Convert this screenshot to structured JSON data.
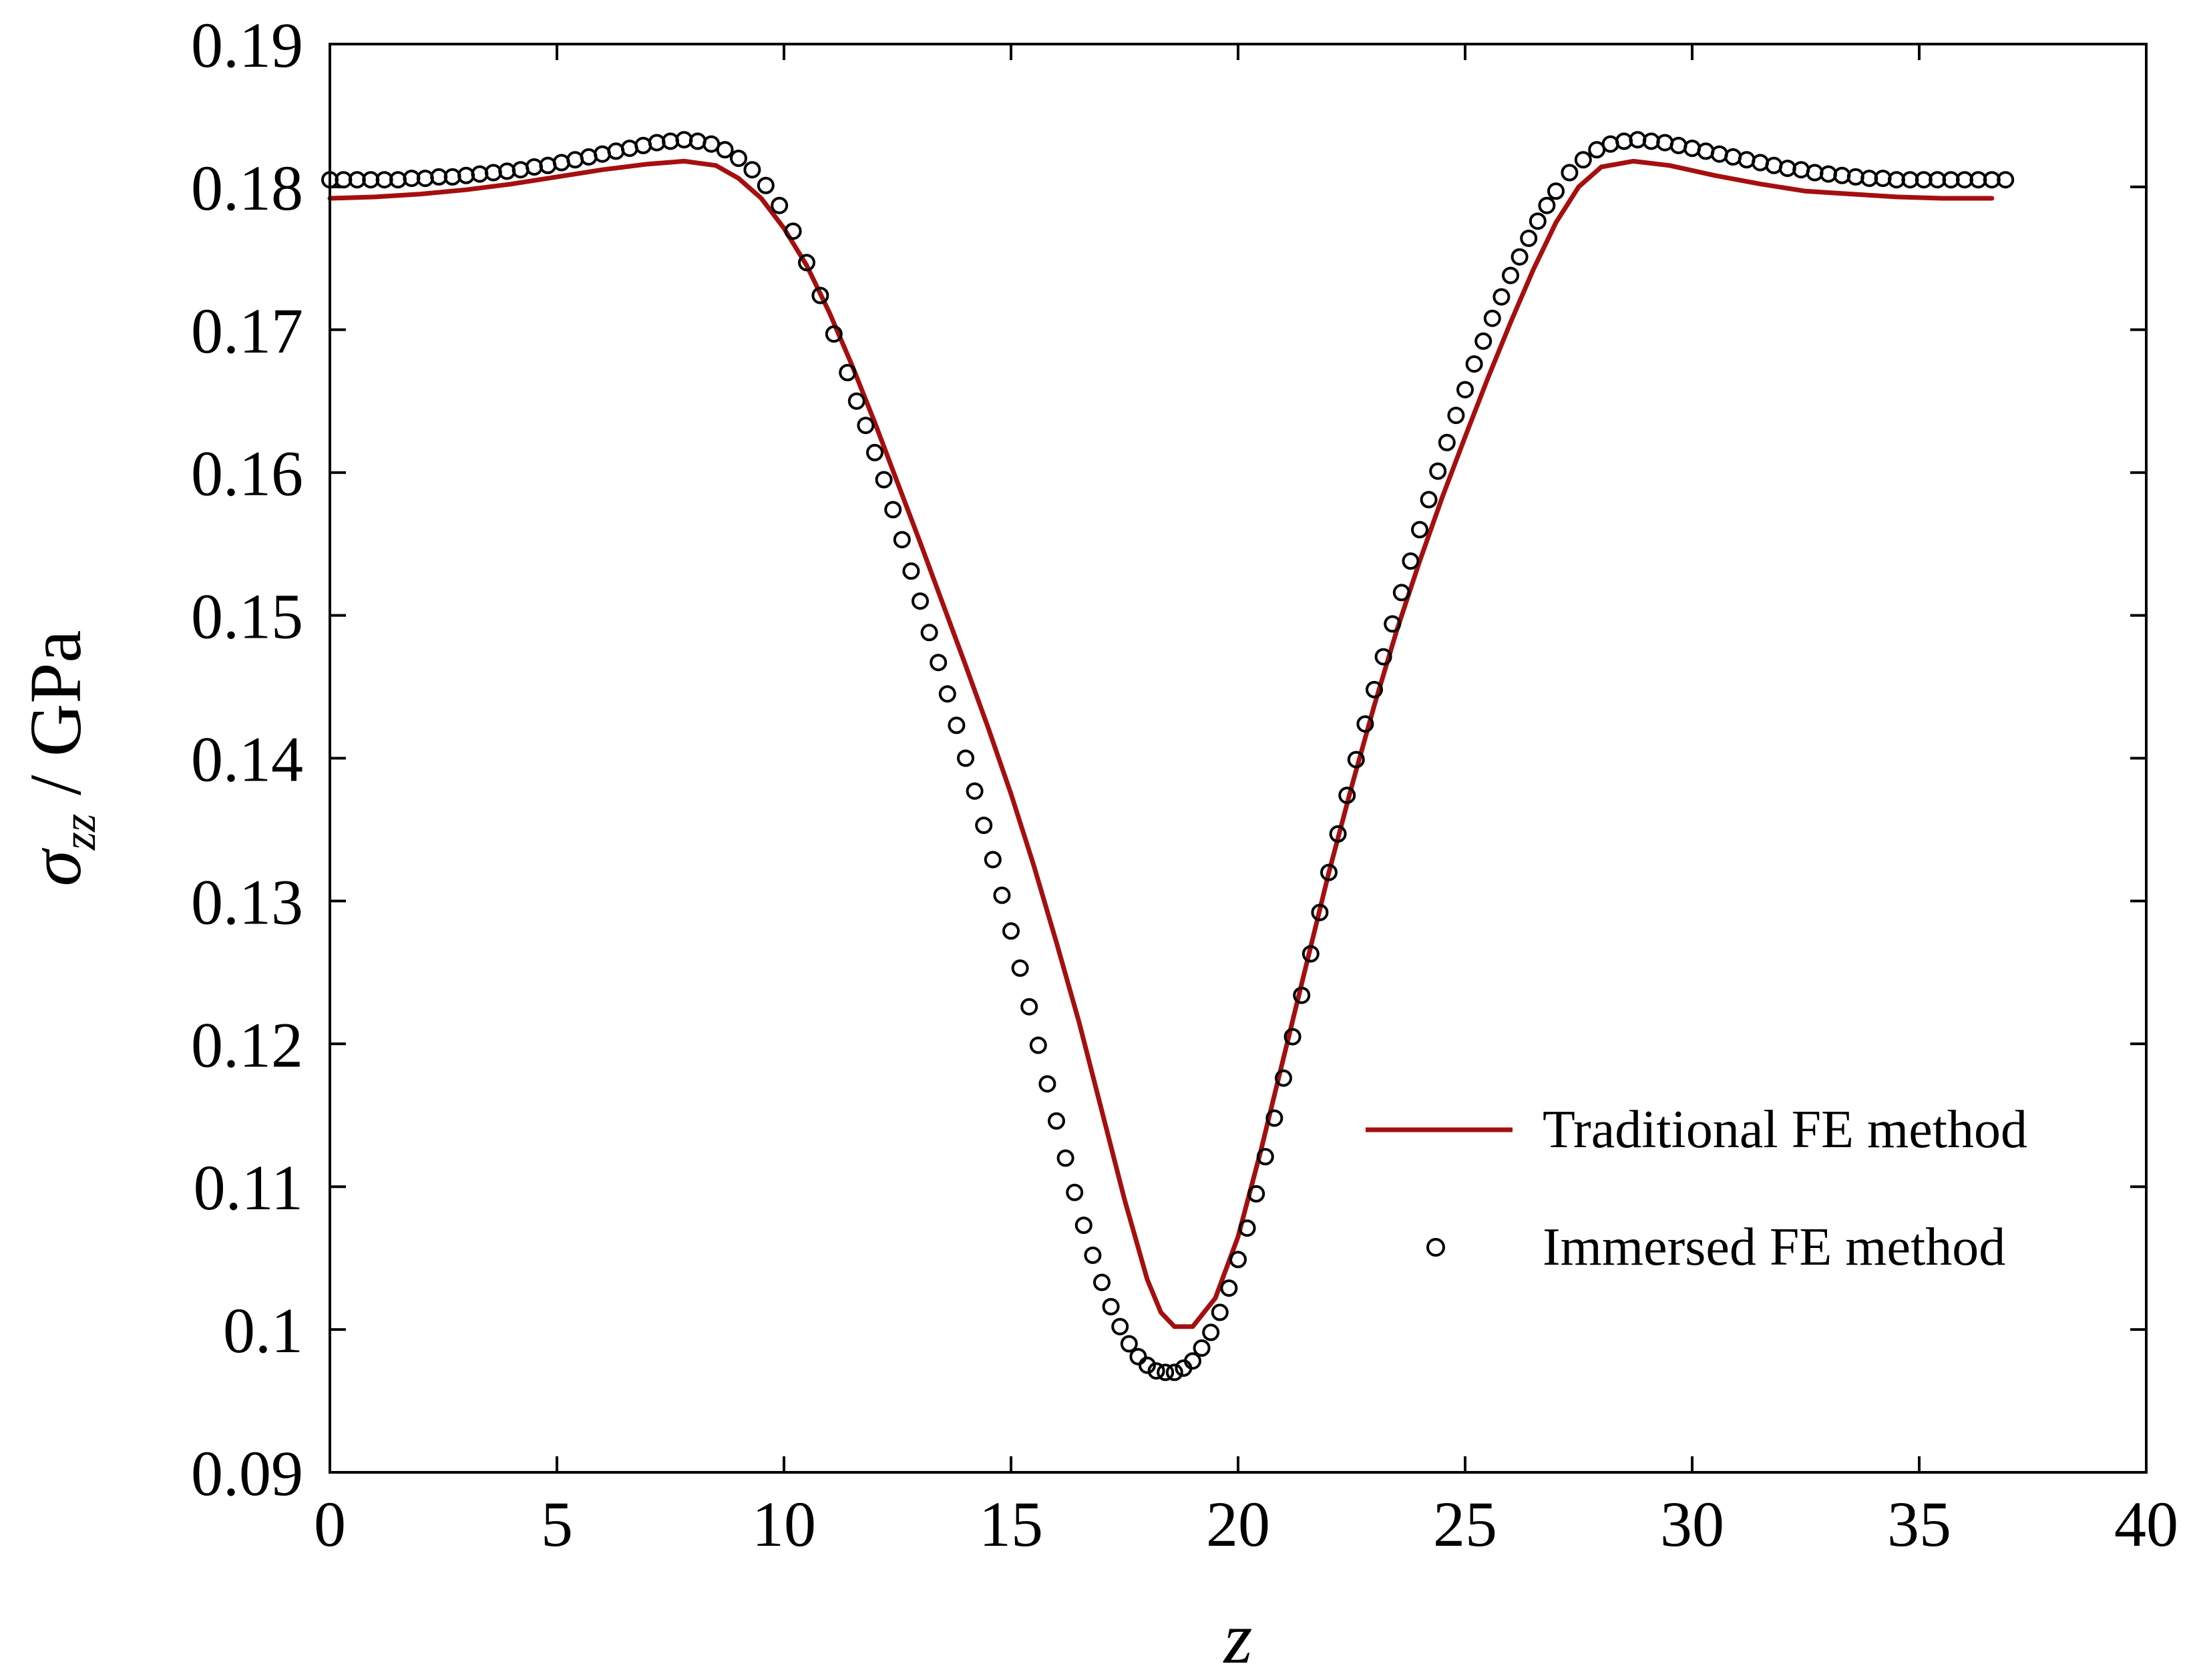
{
  "chart_data": {
    "type": "line",
    "title": "",
    "xlabel": "z",
    "ylabel": {
      "sym": "σ",
      "sub": "zz",
      "rest": " / GPa"
    },
    "xlim": [
      0,
      40
    ],
    "ylim": [
      0.09,
      0.19
    ],
    "x_ticks": [
      0,
      5,
      10,
      15,
      20,
      25,
      30,
      35,
      40
    ],
    "y_ticks": [
      0.09,
      0.1,
      0.11,
      0.12,
      0.13,
      0.14,
      0.15,
      0.16,
      0.17,
      0.18,
      0.19
    ],
    "x_tick_labels": [
      "0",
      "5",
      "10",
      "15",
      "20",
      "25",
      "30",
      "35",
      "40"
    ],
    "y_tick_labels": [
      "0.09",
      "0.1",
      "0.11",
      "0.12",
      "0.13",
      "0.14",
      "0.15",
      "0.16",
      "0.17",
      "0.18",
      "0.19"
    ],
    "grid": false,
    "legend_position": "lower-right",
    "series": [
      {
        "name": "Traditional FE method",
        "style": "line",
        "color": "#a50f0f",
        "x": [
          0,
          1,
          2,
          3,
          4,
          5,
          6,
          7,
          7.8,
          8.5,
          9,
          9.5,
          10,
          10.5,
          11,
          11.5,
          12,
          12.5,
          13,
          13.5,
          14,
          14.5,
          15,
          15.5,
          16,
          16.5,
          17,
          17.5,
          18,
          18.3,
          18.6,
          19,
          19.5,
          20,
          20.5,
          21,
          21.5,
          22,
          22.5,
          23,
          23.5,
          24,
          24.5,
          25,
          25.5,
          26,
          26.5,
          27,
          27.5,
          28,
          28.7,
          29.5,
          30.5,
          31.5,
          32.5,
          33.5,
          34.5,
          35.5,
          36.6
        ],
        "y": [
          0.1792,
          0.1793,
          0.1795,
          0.1798,
          0.1802,
          0.1807,
          0.1812,
          0.1816,
          0.1818,
          0.1815,
          0.1806,
          0.1792,
          0.1771,
          0.1745,
          0.1712,
          0.1675,
          0.1635,
          0.1593,
          0.1551,
          0.1508,
          0.1465,
          0.1421,
          0.1375,
          0.1325,
          0.1271,
          0.1215,
          0.1153,
          0.1091,
          0.1035,
          0.1012,
          0.1002,
          0.1002,
          0.1022,
          0.1065,
          0.1125,
          0.119,
          0.1255,
          0.132,
          0.138,
          0.1437,
          0.149,
          0.1538,
          0.1583,
          0.1625,
          0.1666,
          0.1705,
          0.1742,
          0.1775,
          0.18,
          0.1814,
          0.1818,
          0.1815,
          0.1808,
          0.1802,
          0.1797,
          0.1795,
          0.1793,
          0.1792,
          0.1792
        ]
      },
      {
        "name": "Immersed FE method",
        "style": "markers",
        "marker": "open-circle",
        "color": "#000000",
        "x": [
          0,
          0.3,
          0.6,
          0.9,
          1.2,
          1.5,
          1.8,
          2.1,
          2.4,
          2.7,
          3.0,
          3.3,
          3.6,
          3.9,
          4.2,
          4.5,
          4.8,
          5.1,
          5.4,
          5.7,
          6.0,
          6.3,
          6.6,
          6.9,
          7.2,
          7.5,
          7.8,
          8.1,
          8.4,
          8.7,
          9.0,
          9.3,
          9.6,
          9.9,
          10.2,
          10.5,
          10.8,
          11.1,
          11.4,
          11.6,
          11.8,
          12.0,
          12.2,
          12.4,
          12.6,
          12.8,
          13.0,
          13.2,
          13.4,
          13.6,
          13.8,
          14.0,
          14.2,
          14.4,
          14.6,
          14.8,
          15.0,
          15.2,
          15.4,
          15.6,
          15.8,
          16.0,
          16.2,
          16.4,
          16.6,
          16.8,
          17.0,
          17.2,
          17.4,
          17.6,
          17.8,
          18.0,
          18.2,
          18.4,
          18.6,
          18.8,
          19.0,
          19.2,
          19.4,
          19.6,
          19.8,
          20.0,
          20.2,
          20.4,
          20.6,
          20.8,
          21.0,
          21.2,
          21.4,
          21.6,
          21.8,
          22.0,
          22.2,
          22.4,
          22.6,
          22.8,
          23.0,
          23.2,
          23.4,
          23.6,
          23.8,
          24.0,
          24.2,
          24.4,
          24.6,
          24.8,
          25.0,
          25.2,
          25.4,
          25.6,
          25.8,
          26.0,
          26.2,
          26.4,
          26.6,
          26.8,
          27.0,
          27.3,
          27.6,
          27.9,
          28.2,
          28.5,
          28.8,
          29.1,
          29.4,
          29.7,
          30.0,
          30.3,
          30.6,
          30.9,
          31.2,
          31.5,
          31.8,
          32.1,
          32.4,
          32.7,
          33.0,
          33.3,
          33.6,
          33.9,
          34.2,
          34.5,
          34.8,
          35.1,
          35.4,
          35.7,
          36.0,
          36.3,
          36.6,
          36.9
        ],
        "y": [
          0.1805,
          0.1805,
          0.1805,
          0.1805,
          0.1805,
          0.1805,
          0.1806,
          0.1806,
          0.1807,
          0.1807,
          0.1808,
          0.1809,
          0.181,
          0.1811,
          0.1812,
          0.1814,
          0.1815,
          0.1817,
          0.1819,
          0.1821,
          0.1823,
          0.1825,
          0.1827,
          0.1829,
          0.1831,
          0.1832,
          0.1833,
          0.1832,
          0.183,
          0.1826,
          0.182,
          0.1812,
          0.1801,
          0.1787,
          0.1769,
          0.1747,
          0.1724,
          0.1697,
          0.167,
          0.165,
          0.1633,
          0.1614,
          0.1595,
          0.1574,
          0.1553,
          0.1531,
          0.151,
          0.1488,
          0.1467,
          0.1445,
          0.1423,
          0.14,
          0.1377,
          0.1353,
          0.1329,
          0.1304,
          0.1279,
          0.1253,
          0.1226,
          0.1199,
          0.1172,
          0.1146,
          0.112,
          0.1096,
          0.1073,
          0.1052,
          0.1033,
          0.1016,
          0.1002,
          0.099,
          0.0981,
          0.0975,
          0.0971,
          0.097,
          0.097,
          0.0973,
          0.0978,
          0.0987,
          0.0998,
          0.1012,
          0.1029,
          0.1049,
          0.1071,
          0.1095,
          0.1121,
          0.1148,
          0.1176,
          0.1205,
          0.1234,
          0.1263,
          0.1292,
          0.132,
          0.1347,
          0.1374,
          0.1399,
          0.1424,
          0.1448,
          0.1471,
          0.1494,
          0.1516,
          0.1538,
          0.156,
          0.1581,
          0.1601,
          0.1621,
          0.164,
          0.1658,
          0.1676,
          0.1692,
          0.1708,
          0.1723,
          0.1738,
          0.1751,
          0.1764,
          0.1776,
          0.1787,
          0.1797,
          0.181,
          0.1819,
          0.1826,
          0.183,
          0.1832,
          0.1833,
          0.1832,
          0.1831,
          0.1829,
          0.1827,
          0.1825,
          0.1823,
          0.1821,
          0.1819,
          0.1817,
          0.1815,
          0.1813,
          0.1812,
          0.181,
          0.1809,
          0.1808,
          0.1807,
          0.1806,
          0.1806,
          0.1805,
          0.1805,
          0.1805,
          0.1805,
          0.1805,
          0.1805,
          0.1805,
          0.1805,
          0.1805
        ]
      }
    ]
  }
}
